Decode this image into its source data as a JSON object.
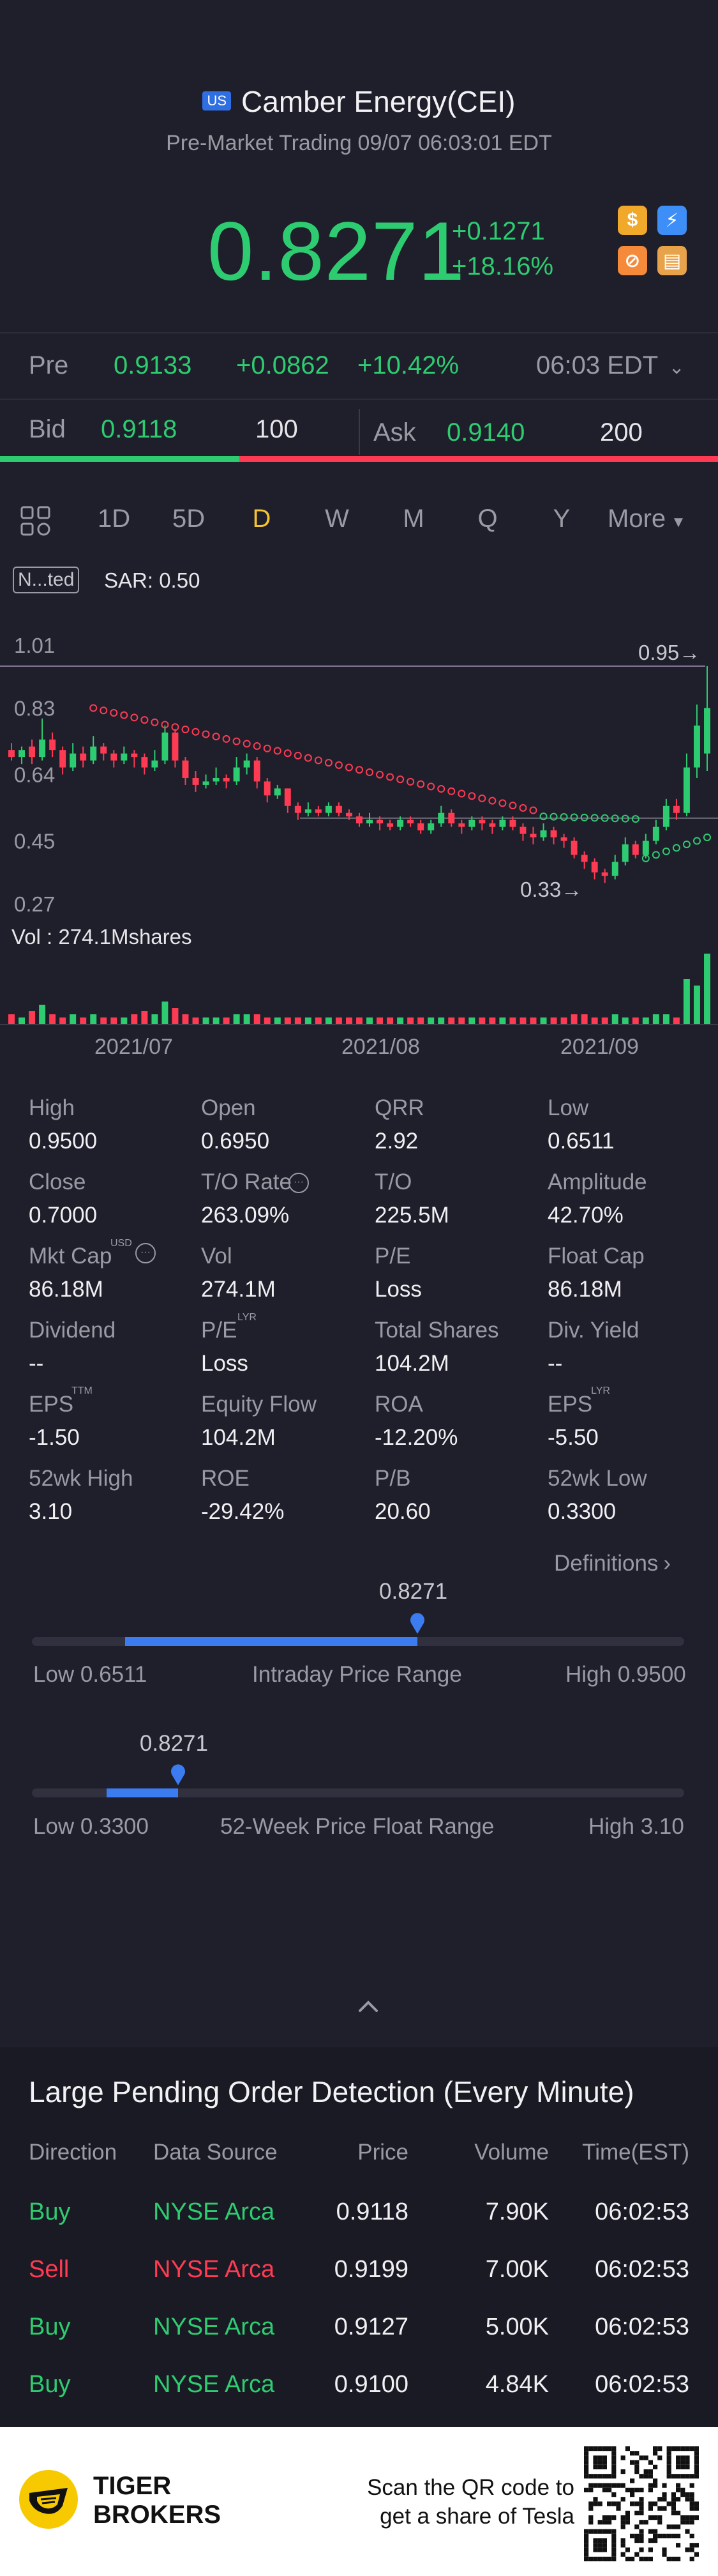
{
  "header": {
    "market_badge": "US",
    "title": "Camber Energy(CEI)",
    "subtitle": "Pre-Market Trading 09/07 06:03:01 EDT"
  },
  "quote": {
    "price": "0.8271",
    "change": "+0.1271",
    "change_pct": "+18.16%"
  },
  "premarket": {
    "label": "Pre",
    "price": "0.9133",
    "change": "+0.0862",
    "change_pct": "+10.42%",
    "time": "06:03 EDT"
  },
  "bidask": {
    "bid_label": "Bid",
    "bid_price": "0.9118",
    "bid_size": "100",
    "ask_label": "Ask",
    "ask_price": "0.9140",
    "ask_size": "200"
  },
  "timeframes": [
    "1D",
    "5D",
    "D",
    "W",
    "M",
    "Q",
    "Y"
  ],
  "timeframe_selected": "D",
  "timeframe_more": "More",
  "indicator": {
    "chip": "N...ted",
    "sar_label": "SAR: 0.50"
  },
  "chart_data": {
    "type": "candlestick",
    "y_ticks": [
      "1.01",
      "0.83",
      "0.64",
      "0.45",
      "0.27"
    ],
    "x_ticks": [
      "2021/07",
      "2021/08",
      "2021/09"
    ],
    "high_marker": "0.95",
    "low_marker": "0.33",
    "volume_label": "Vol   : 274.1Mshares",
    "candles": [
      {
        "o": 0.71,
        "c": 0.69,
        "h": 0.73,
        "l": 0.68
      },
      {
        "o": 0.69,
        "c": 0.71,
        "h": 0.72,
        "l": 0.67
      },
      {
        "o": 0.72,
        "c": 0.69,
        "h": 0.74,
        "l": 0.67
      },
      {
        "o": 0.69,
        "c": 0.74,
        "h": 0.8,
        "l": 0.68
      },
      {
        "o": 0.74,
        "c": 0.71,
        "h": 0.76,
        "l": 0.69
      },
      {
        "o": 0.71,
        "c": 0.66,
        "h": 0.72,
        "l": 0.64
      },
      {
        "o": 0.66,
        "c": 0.7,
        "h": 0.73,
        "l": 0.65
      },
      {
        "o": 0.7,
        "c": 0.68,
        "h": 0.72,
        "l": 0.66
      },
      {
        "o": 0.68,
        "c": 0.72,
        "h": 0.75,
        "l": 0.67
      },
      {
        "o": 0.72,
        "c": 0.7,
        "h": 0.73,
        "l": 0.68
      },
      {
        "o": 0.7,
        "c": 0.68,
        "h": 0.71,
        "l": 0.66
      },
      {
        "o": 0.68,
        "c": 0.7,
        "h": 0.72,
        "l": 0.67
      },
      {
        "o": 0.7,
        "c": 0.69,
        "h": 0.71,
        "l": 0.66
      },
      {
        "o": 0.69,
        "c": 0.66,
        "h": 0.7,
        "l": 0.64
      },
      {
        "o": 0.66,
        "c": 0.68,
        "h": 0.71,
        "l": 0.65
      },
      {
        "o": 0.68,
        "c": 0.76,
        "h": 0.78,
        "l": 0.67
      },
      {
        "o": 0.76,
        "c": 0.68,
        "h": 0.77,
        "l": 0.66
      },
      {
        "o": 0.68,
        "c": 0.63,
        "h": 0.69,
        "l": 0.61
      },
      {
        "o": 0.63,
        "c": 0.61,
        "h": 0.65,
        "l": 0.59
      },
      {
        "o": 0.61,
        "c": 0.62,
        "h": 0.64,
        "l": 0.6
      },
      {
        "o": 0.62,
        "c": 0.63,
        "h": 0.66,
        "l": 0.61
      },
      {
        "o": 0.63,
        "c": 0.62,
        "h": 0.64,
        "l": 0.6
      },
      {
        "o": 0.62,
        "c": 0.66,
        "h": 0.69,
        "l": 0.61
      },
      {
        "o": 0.66,
        "c": 0.68,
        "h": 0.7,
        "l": 0.64
      },
      {
        "o": 0.68,
        "c": 0.62,
        "h": 0.69,
        "l": 0.6
      },
      {
        "o": 0.62,
        "c": 0.58,
        "h": 0.63,
        "l": 0.56
      },
      {
        "o": 0.58,
        "c": 0.6,
        "h": 0.61,
        "l": 0.57
      },
      {
        "o": 0.6,
        "c": 0.55,
        "h": 0.6,
        "l": 0.53
      },
      {
        "o": 0.55,
        "c": 0.53,
        "h": 0.56,
        "l": 0.51
      },
      {
        "o": 0.53,
        "c": 0.54,
        "h": 0.56,
        "l": 0.52
      },
      {
        "o": 0.54,
        "c": 0.53,
        "h": 0.55,
        "l": 0.52
      },
      {
        "o": 0.53,
        "c": 0.55,
        "h": 0.56,
        "l": 0.52
      },
      {
        "o": 0.55,
        "c": 0.53,
        "h": 0.56,
        "l": 0.52
      },
      {
        "o": 0.53,
        "c": 0.52,
        "h": 0.54,
        "l": 0.51
      },
      {
        "o": 0.52,
        "c": 0.5,
        "h": 0.53,
        "l": 0.49
      },
      {
        "o": 0.5,
        "c": 0.51,
        "h": 0.53,
        "l": 0.49
      },
      {
        "o": 0.51,
        "c": 0.5,
        "h": 0.52,
        "l": 0.48
      },
      {
        "o": 0.5,
        "c": 0.49,
        "h": 0.51,
        "l": 0.48
      },
      {
        "o": 0.49,
        "c": 0.51,
        "h": 0.52,
        "l": 0.48
      },
      {
        "o": 0.51,
        "c": 0.5,
        "h": 0.52,
        "l": 0.49
      },
      {
        "o": 0.5,
        "c": 0.48,
        "h": 0.51,
        "l": 0.47
      },
      {
        "o": 0.48,
        "c": 0.5,
        "h": 0.51,
        "l": 0.47
      },
      {
        "o": 0.5,
        "c": 0.53,
        "h": 0.55,
        "l": 0.49
      },
      {
        "o": 0.53,
        "c": 0.5,
        "h": 0.54,
        "l": 0.49
      },
      {
        "o": 0.5,
        "c": 0.49,
        "h": 0.51,
        "l": 0.47
      },
      {
        "o": 0.49,
        "c": 0.51,
        "h": 0.52,
        "l": 0.48
      },
      {
        "o": 0.51,
        "c": 0.5,
        "h": 0.52,
        "l": 0.48
      },
      {
        "o": 0.5,
        "c": 0.49,
        "h": 0.51,
        "l": 0.47
      },
      {
        "o": 0.49,
        "c": 0.51,
        "h": 0.52,
        "l": 0.48
      },
      {
        "o": 0.51,
        "c": 0.49,
        "h": 0.52,
        "l": 0.48
      },
      {
        "o": 0.49,
        "c": 0.47,
        "h": 0.5,
        "l": 0.45
      },
      {
        "o": 0.47,
        "c": 0.46,
        "h": 0.49,
        "l": 0.44
      },
      {
        "o": 0.46,
        "c": 0.48,
        "h": 0.5,
        "l": 0.45
      },
      {
        "o": 0.48,
        "c": 0.46,
        "h": 0.49,
        "l": 0.44
      },
      {
        "o": 0.46,
        "c": 0.45,
        "h": 0.47,
        "l": 0.43
      },
      {
        "o": 0.45,
        "c": 0.41,
        "h": 0.46,
        "l": 0.4
      },
      {
        "o": 0.41,
        "c": 0.39,
        "h": 0.42,
        "l": 0.37
      },
      {
        "o": 0.39,
        "c": 0.36,
        "h": 0.4,
        "l": 0.34
      },
      {
        "o": 0.36,
        "c": 0.35,
        "h": 0.37,
        "l": 0.33
      },
      {
        "o": 0.35,
        "c": 0.39,
        "h": 0.41,
        "l": 0.34
      },
      {
        "o": 0.39,
        "c": 0.44,
        "h": 0.46,
        "l": 0.38
      },
      {
        "o": 0.44,
        "c": 0.41,
        "h": 0.45,
        "l": 0.4
      },
      {
        "o": 0.41,
        "c": 0.45,
        "h": 0.47,
        "l": 0.4
      },
      {
        "o": 0.45,
        "c": 0.49,
        "h": 0.51,
        "l": 0.44
      },
      {
        "o": 0.49,
        "c": 0.55,
        "h": 0.57,
        "l": 0.48
      },
      {
        "o": 0.55,
        "c": 0.53,
        "h": 0.57,
        "l": 0.51
      },
      {
        "o": 0.53,
        "c": 0.66,
        "h": 0.7,
        "l": 0.52
      },
      {
        "o": 0.66,
        "c": 0.78,
        "h": 0.84,
        "l": 0.63
      },
      {
        "o": 0.7,
        "c": 0.83,
        "h": 0.95,
        "l": 0.65
      }
    ],
    "volumes": [
      3,
      2,
      4,
      6,
      3,
      2,
      3,
      2,
      3,
      2,
      2,
      2,
      3,
      4,
      3,
      7,
      5,
      3,
      2,
      2,
      2,
      2,
      3,
      3,
      3,
      2,
      2,
      2,
      2,
      2,
      2,
      2,
      2,
      2,
      2,
      2,
      2,
      2,
      2,
      2,
      2,
      2,
      2,
      2,
      2,
      2,
      2,
      2,
      2,
      2,
      2,
      2,
      2,
      2,
      2,
      3,
      3,
      2,
      2,
      3,
      2,
      2,
      2,
      3,
      3,
      2,
      14,
      12,
      22
    ]
  },
  "stats": [
    {
      "label": "High",
      "value": "0.9500"
    },
    {
      "label": "Open",
      "value": "0.6950"
    },
    {
      "label": "QRR",
      "value": "2.92"
    },
    {
      "label": "Low",
      "value": "0.6511"
    },
    {
      "label": "Close",
      "value": "0.7000"
    },
    {
      "label": "T/O Rate",
      "value": "263.09%"
    },
    {
      "label": "T/O",
      "value": "225.5M"
    },
    {
      "label": "Amplitude",
      "value": "42.70%"
    },
    {
      "label": "Mkt Cap",
      "value": "86.18M"
    },
    {
      "label": "Vol",
      "value": "274.1M"
    },
    {
      "label": "P/E",
      "value": "Loss"
    },
    {
      "label": "Float Cap",
      "value": "86.18M"
    },
    {
      "label": "Dividend",
      "value": "--"
    },
    {
      "label": "P/E",
      "value": "Loss"
    },
    {
      "label": "Total Shares",
      "value": "104.2M"
    },
    {
      "label": "Div. Yield",
      "value": "--"
    },
    {
      "label": "EPS",
      "value": "-1.50"
    },
    {
      "label": "Equity Flow",
      "value": "104.2M"
    },
    {
      "label": "ROA",
      "value": "-12.20%"
    },
    {
      "label": "EPS",
      "value": "-5.50"
    },
    {
      "label": "52wk High",
      "value": "3.10"
    },
    {
      "label": "ROE",
      "value": "-29.42%"
    },
    {
      "label": "P/B",
      "value": "20.60"
    },
    {
      "label": "52wk Low",
      "value": "0.3300"
    }
  ],
  "superscripts": {
    "usd": "USD",
    "lyr": "LYR",
    "ttm": "TTM"
  },
  "definitions_label": "Definitions",
  "intraday_range": {
    "current": "0.8271",
    "low": "Low 0.6511",
    "title": "Intraday Price Range",
    "high": "High 0.9500",
    "fill_start": 0.143,
    "fill_end": 0.591
  },
  "week52_range": {
    "current": "0.8271",
    "low": "Low 0.3300",
    "title": "52-Week Price Float Range",
    "high": "High 3.10",
    "fill_start": 0.114,
    "fill_end": 0.224
  },
  "pending": {
    "title": "Large Pending Order Detection (Every Minute)",
    "headers": [
      "Direction",
      "Data Source",
      "Price",
      "Volume",
      "Time(EST)"
    ],
    "rows": [
      {
        "dir": "Buy",
        "src": "NYSE Arca",
        "price": "0.9118",
        "vol": "7.90K",
        "time": "06:02:53"
      },
      {
        "dir": "Sell",
        "src": "NYSE Arca",
        "price": "0.9199",
        "vol": "7.00K",
        "time": "06:02:53"
      },
      {
        "dir": "Buy",
        "src": "NYSE Arca",
        "price": "0.9127",
        "vol": "5.00K",
        "time": "06:02:53"
      },
      {
        "dir": "Buy",
        "src": "NYSE Arca",
        "price": "0.9100",
        "vol": "4.84K",
        "time": "06:02:53"
      }
    ]
  },
  "footer": {
    "brand_line1": "TIGER",
    "brand_line2": "BROKERS",
    "cta_line1": "Scan the QR code to",
    "cta_line2": "get a share of Tesla"
  },
  "colors": {
    "bg": "#1f1f2b",
    "up": "#2ecc71",
    "down": "#ff3b53",
    "accent": "#3b7cf0",
    "selected": "#f5c431"
  }
}
